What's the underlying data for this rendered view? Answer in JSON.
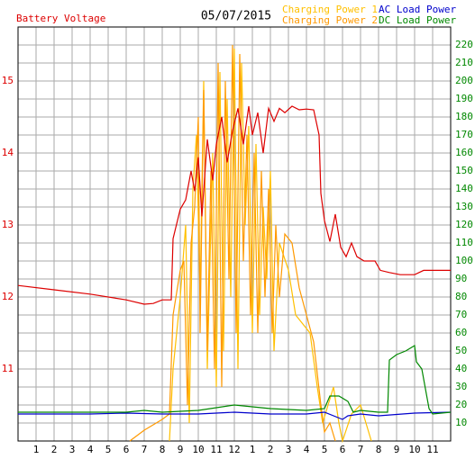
{
  "chart_data": {
    "type": "line",
    "title": "05/07/2015",
    "ylabel": "Battery Voltage",
    "ylim": [
      10,
      15.75
    ],
    "yticks": [
      11,
      12,
      13,
      14,
      15
    ],
    "ytick_color": "#dd0000",
    "y2lim": [
      0,
      230
    ],
    "y2ticks": [
      10,
      20,
      30,
      40,
      50,
      60,
      70,
      80,
      90,
      100,
      110,
      120,
      130,
      140,
      150,
      160,
      170,
      180,
      190,
      200,
      210,
      220
    ],
    "y2tick_color": "#008800",
    "xlim": [
      0,
      24
    ],
    "xticks": [
      1,
      2,
      3,
      4,
      5,
      6,
      7,
      8,
      9,
      10,
      11,
      12,
      {
        "value": 13,
        "label": "1"
      },
      {
        "value": 14,
        "label": "2"
      },
      {
        "value": 15,
        "label": "3"
      },
      {
        "value": 16,
        "label": "4"
      },
      {
        "value": 17,
        "label": "5"
      },
      {
        "value": 18,
        "label": "6"
      },
      {
        "value": 19,
        "label": "7"
      },
      {
        "value": 20,
        "label": "8"
      },
      {
        "value": 21,
        "label": "9"
      },
      {
        "value": 22,
        "label": "10"
      },
      {
        "value": 23,
        "label": "11"
      }
    ],
    "grid": true,
    "series": [
      {
        "name": "Charging Power 1",
        "color": "#ffc000",
        "axis": "y2",
        "x": [
          8.4,
          8.6,
          9,
          9.3,
          9.5,
          9.7,
          9.9,
          10.1,
          10.3,
          10.5,
          10.8,
          11,
          11.2,
          11.4,
          11.6,
          11.8,
          12,
          12.2,
          12.4,
          12.6,
          12.8,
          13,
          13.2,
          13.4,
          13.6,
          13.8,
          14,
          14.2,
          14.5,
          15,
          15.4,
          15.8,
          16.2,
          16.6,
          16.9,
          17.2,
          17.5,
          17.8,
          18,
          18.5,
          19,
          19.3,
          19.6
        ],
        "values": [
          0,
          40,
          80,
          120,
          10,
          140,
          170,
          80,
          200,
          40,
          160,
          30,
          205,
          50,
          190,
          80,
          218,
          40,
          210,
          120,
          175,
          60,
          165,
          70,
          130,
          90,
          150,
          50,
          110,
          95,
          70,
          65,
          60,
          30,
          10,
          20,
          30,
          10,
          0,
          15,
          20,
          10,
          0
        ]
      },
      {
        "name": "Charging Power 2",
        "color": "#ff9900",
        "axis": "y2",
        "x": [
          6.2,
          7,
          8,
          8.4,
          8.6,
          9,
          9.2,
          9.4,
          9.6,
          9.8,
          10,
          10.1,
          10.3,
          10.5,
          10.7,
          10.9,
          11.1,
          11.3,
          11.5,
          11.7,
          11.9,
          12.1,
          12.3,
          12.5,
          12.7,
          12.9,
          13.1,
          13.3,
          13.5,
          13.7,
          13.9,
          14.1,
          14.3,
          14.5,
          14.8,
          15.2,
          15.6,
          16,
          16.4,
          16.8,
          17,
          17.3,
          17.6
        ],
        "values": [
          0,
          6,
          12,
          15,
          70,
          95,
          100,
          20,
          110,
          130,
          180,
          60,
          195,
          50,
          150,
          40,
          210,
          30,
          200,
          90,
          220,
          60,
          215,
          100,
          170,
          70,
          160,
          60,
          150,
          80,
          140,
          60,
          120,
          80,
          115,
          110,
          85,
          70,
          55,
          20,
          5,
          10,
          0
        ]
      },
      {
        "name": "AC Load Power",
        "color": "#0000cc",
        "axis": "y2",
        "x": [
          0,
          2,
          4,
          6,
          8,
          10,
          12,
          14,
          16,
          17,
          18,
          18.3,
          19,
          20,
          22,
          24
        ],
        "values": [
          15,
          15,
          15,
          15.5,
          15,
          15,
          16,
          15,
          15,
          16,
          12,
          14,
          15,
          14,
          15.5,
          16
        ]
      },
      {
        "name": "DC Load Power",
        "color": "#008800",
        "axis": "y2",
        "x": [
          0,
          6,
          7,
          8,
          10,
          12,
          14,
          16,
          17,
          17.3,
          17.8,
          18.3,
          18.6,
          19,
          20,
          20.5,
          20.6,
          21,
          21.5,
          22,
          22.1,
          22.4,
          22.8,
          23,
          24
        ],
        "values": [
          16,
          16,
          17,
          16,
          17,
          20,
          18,
          17,
          18,
          25,
          25,
          22,
          16,
          17,
          16,
          16,
          45,
          48,
          50,
          53,
          44,
          40,
          18,
          15,
          16
        ]
      },
      {
        "name": "Battery Voltage",
        "color": "#dd0000",
        "axis": "y",
        "x": [
          0,
          2,
          4,
          6,
          7,
          7.5,
          8,
          8.5,
          8.6,
          9,
          9.3,
          9.6,
          9.8,
          10,
          10.2,
          10.5,
          10.8,
          11,
          11.3,
          11.6,
          11.9,
          12.2,
          12.5,
          12.8,
          13,
          13.3,
          13.6,
          13.9,
          14.2,
          14.5,
          14.8,
          15.2,
          15.6,
          16,
          16.4,
          16.7,
          16.8,
          17,
          17.3,
          17.6,
          17.9,
          18.2,
          18.5,
          18.8,
          19.2,
          19.8,
          20.1,
          20.6,
          21.2,
          22,
          22.5,
          24
        ],
        "values": [
          12.16,
          12.1,
          12.04,
          11.96,
          11.9,
          11.91,
          11.96,
          11.96,
          12.81,
          13.22,
          13.35,
          13.75,
          13.47,
          13.94,
          13.12,
          14.19,
          13.62,
          14.12,
          14.5,
          13.87,
          14.31,
          14.62,
          14.12,
          14.65,
          14.25,
          14.56,
          14,
          14.62,
          14.44,
          14.62,
          14.56,
          14.65,
          14.6,
          14.61,
          14.6,
          14.25,
          13.44,
          13.06,
          12.77,
          13.15,
          12.69,
          12.56,
          12.75,
          12.56,
          12.5,
          12.5,
          12.37,
          12.34,
          12.31,
          12.31,
          12.37,
          12.37
        ]
      }
    ]
  }
}
